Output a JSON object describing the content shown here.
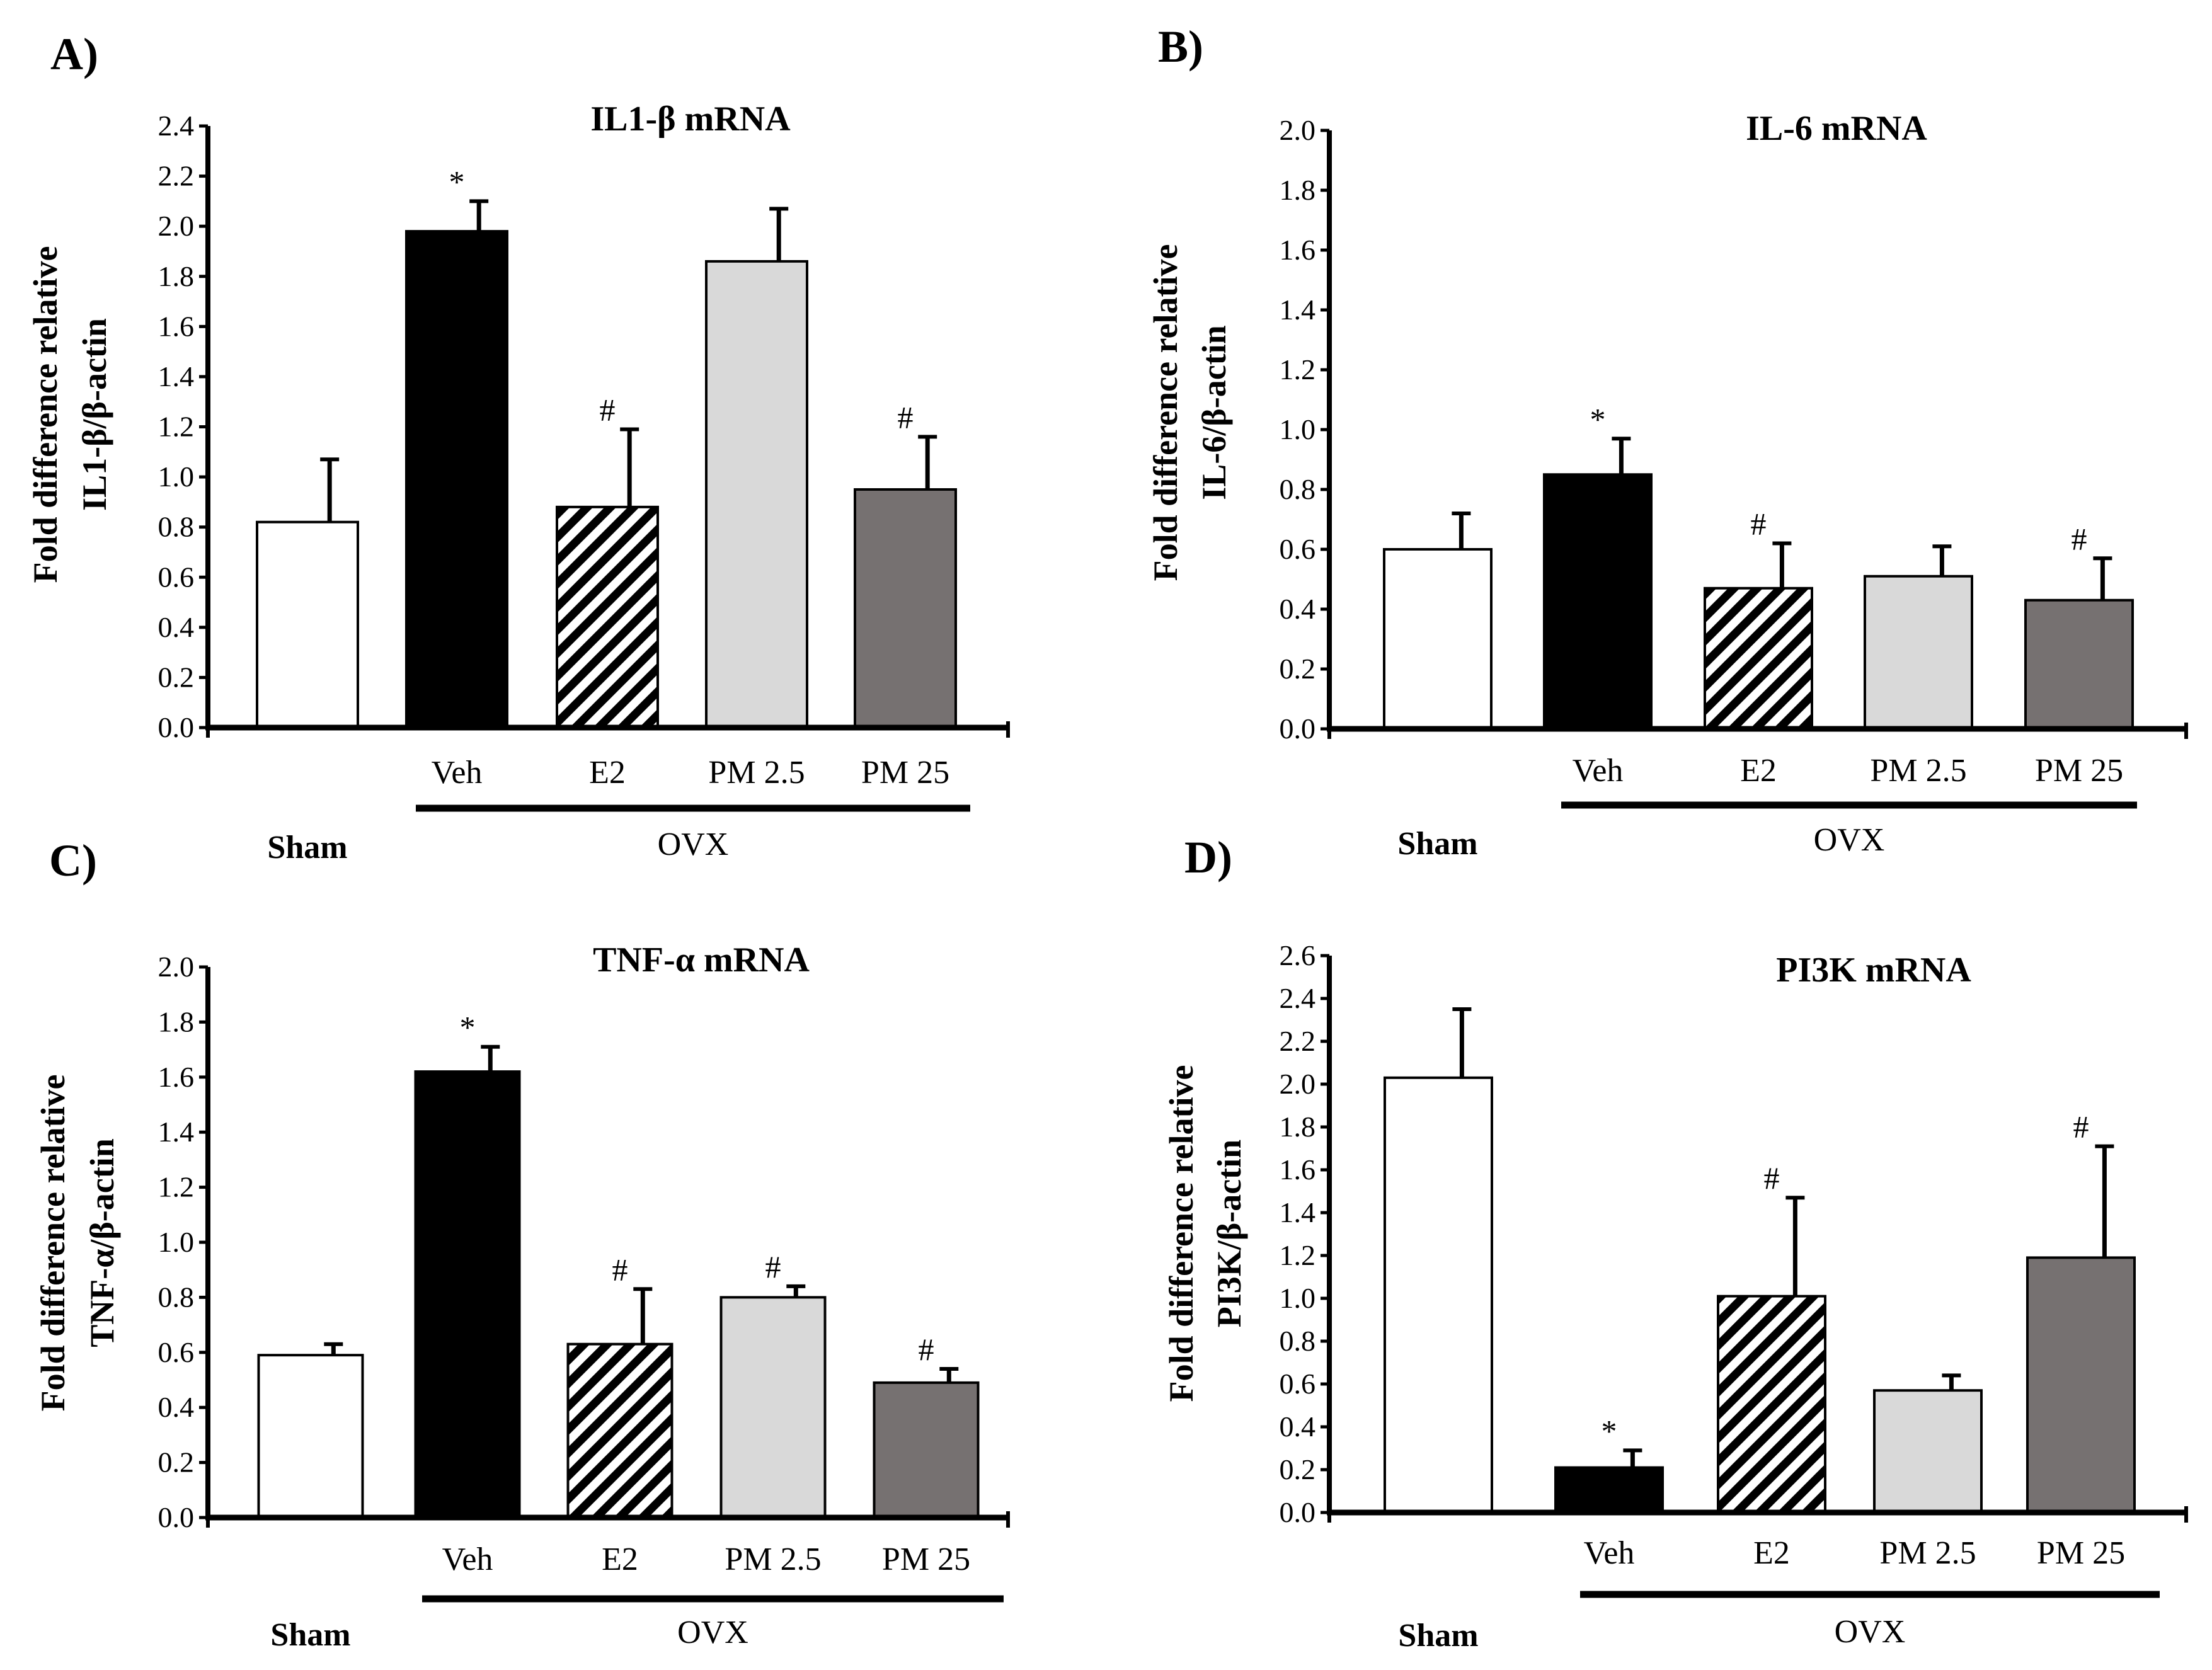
{
  "chart_data": [
    {
      "type": "bar",
      "panel_label": "A)",
      "title": "IL1-β mRNA",
      "ylabel_line1": "Fold difference relative",
      "ylabel_line2": "IL1-β/β-actin",
      "ylim": [
        0,
        2.4
      ],
      "ytick_step": 0.2,
      "yticks": [
        "0.0",
        "0.2",
        "0.4",
        "0.6",
        "0.8",
        "1.0",
        "1.2",
        "1.4",
        "1.6",
        "1.8",
        "2.0",
        "2.2",
        "2.4"
      ],
      "categories": [
        "Sham",
        "Veh",
        "E2",
        "PM 2.5",
        "PM 25"
      ],
      "group_label": "OVX",
      "values": [
        0.82,
        1.98,
        0.88,
        1.86,
        0.95
      ],
      "errors": [
        0.25,
        0.12,
        0.31,
        0.21,
        0.21
      ],
      "markers": [
        "",
        "*",
        "#",
        "",
        "#"
      ]
    },
    {
      "type": "bar",
      "panel_label": "B)",
      "title": "IL-6 mRNA",
      "ylabel_line1": "Fold difference relative",
      "ylabel_line2": "IL-6/β-actin",
      "ylim": [
        0,
        2.0
      ],
      "ytick_step": 0.2,
      "yticks": [
        "0.0",
        "0.2",
        "0.4",
        "0.6",
        "0.8",
        "1.0",
        "1.2",
        "1.4",
        "1.6",
        "1.8",
        "2.0"
      ],
      "categories": [
        "Sham",
        "Veh",
        "E2",
        "PM 2.5",
        "PM 25"
      ],
      "group_label": "OVX",
      "values": [
        0.6,
        0.85,
        0.47,
        0.51,
        0.43
      ],
      "errors": [
        0.12,
        0.12,
        0.15,
        0.1,
        0.14
      ],
      "markers": [
        "",
        "*",
        "#",
        "",
        "#"
      ]
    },
    {
      "type": "bar",
      "panel_label": "C)",
      "title": "TNF-α mRNA",
      "ylabel_line1": "Fold difference relative",
      "ylabel_line2": "TNF-α/β-actin",
      "ylim": [
        0,
        2.0
      ],
      "ytick_step": 0.2,
      "yticks": [
        "0.0",
        "0.2",
        "0.4",
        "0.6",
        "0.8",
        "1.0",
        "1.2",
        "1.4",
        "1.6",
        "1.8",
        "2.0"
      ],
      "categories": [
        "Sham",
        "Veh",
        "E2",
        "PM 2.5",
        "PM 25"
      ],
      "group_label": "OVX",
      "values": [
        0.59,
        1.62,
        0.63,
        0.8,
        0.49
      ],
      "errors": [
        0.04,
        0.09,
        0.2,
        0.04,
        0.05
      ],
      "markers": [
        "",
        "*",
        "#",
        "#",
        "#"
      ]
    },
    {
      "type": "bar",
      "panel_label": "D)",
      "title": "PI3K mRNA",
      "ylabel_line1": "Fold difference relative",
      "ylabel_line2": "PI3K/β-actin",
      "ylim": [
        0,
        2.6
      ],
      "ytick_step": 0.2,
      "yticks": [
        "0.0",
        "0.2",
        "0.4",
        "0.6",
        "0.8",
        "1.0",
        "1.2",
        "1.4",
        "1.6",
        "1.8",
        "2.0",
        "2.2",
        "2.4",
        "2.6"
      ],
      "categories": [
        "Sham",
        "Veh",
        "E2",
        "PM 2.5",
        "PM 25"
      ],
      "group_label": "OVX",
      "values": [
        2.03,
        0.21,
        1.01,
        0.57,
        1.19
      ],
      "errors": [
        0.32,
        0.08,
        0.46,
        0.07,
        0.52
      ],
      "markers": [
        "",
        "*",
        "#",
        "",
        "#"
      ]
    }
  ],
  "styles": {
    "bar_fills": [
      "#ffffff",
      "#000000",
      "hatch",
      "#d9d9d9",
      "#767171"
    ],
    "axis_color": "#000000"
  }
}
